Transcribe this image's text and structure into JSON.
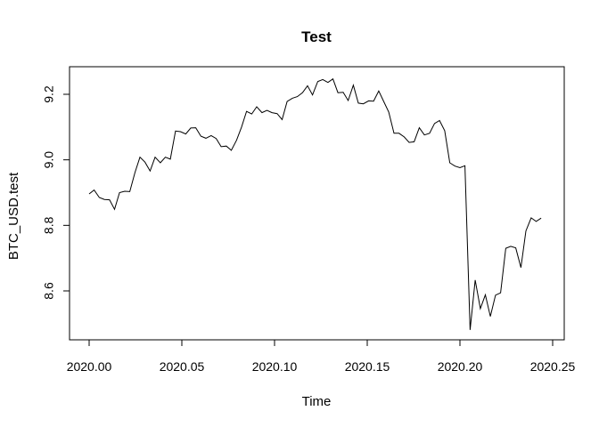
{
  "chart_data": {
    "type": "line",
    "title": "Test",
    "xlabel": "Time",
    "ylabel": "BTC_USD.test",
    "xlim": [
      2000.0,
      2020.25
    ],
    "ylim": [
      8.48,
      9.25
    ],
    "grid": false,
    "x_ticks": [
      "2020.00",
      "2020.05",
      "2020.10",
      "2020.15",
      "2020.20",
      "2020.25"
    ],
    "x_tick_values": [
      2020.0,
      2020.05,
      2020.1,
      2020.15,
      2020.2,
      2020.25
    ],
    "y_ticks": [
      "8.6",
      "8.8",
      "9.0",
      "9.2"
    ],
    "y_tick_values": [
      8.6,
      8.8,
      9.0,
      9.2
    ],
    "series": [
      {
        "x": [
          2020.0,
          2020.0027,
          2020.0055,
          2020.0082,
          2020.011,
          2020.0137,
          2020.0164,
          2020.0192,
          2020.0219,
          2020.0247,
          2020.0274,
          2020.0301,
          2020.0329,
          2020.0356,
          2020.0384,
          2020.0411,
          2020.0438,
          2020.0466,
          2020.0493,
          2020.0521,
          2020.0548,
          2020.0575,
          2020.0603,
          2020.063,
          2020.0658,
          2020.0685,
          2020.0712,
          2020.074,
          2020.0767,
          2020.0795,
          2020.0822,
          2020.0849,
          2020.0877,
          2020.0904,
          2020.0932,
          2020.0959,
          2020.0986,
          2020.1014,
          2020.1041,
          2020.1068,
          2020.1096,
          2020.1123,
          2020.1151,
          2020.1178,
          2020.1205,
          2020.1233,
          2020.126,
          2020.1288,
          2020.1315,
          2020.1342,
          2020.137,
          2020.1397,
          2020.1425,
          2020.1452,
          2020.1479,
          2020.1507,
          2020.1534,
          2020.1562,
          2020.1589,
          2020.1616,
          2020.1644,
          2020.1671,
          2020.1699,
          2020.1726,
          2020.1753,
          2020.1781,
          2020.1808,
          2020.1836,
          2020.1863,
          2020.189,
          2020.1918,
          2020.1945,
          2020.1973,
          2020.2,
          2020.2027,
          2020.2055,
          2020.2082,
          2020.211,
          2020.2137,
          2020.2164,
          2020.2192,
          2020.2219,
          2020.2247,
          2020.2274,
          2020.2301,
          2020.2329,
          2020.2356,
          2020.2384,
          2020.2411,
          2020.2438
        ],
        "y": [
          8.896,
          8.908,
          8.885,
          8.879,
          8.878,
          8.849,
          8.9,
          8.904,
          8.903,
          8.961,
          9.008,
          8.993,
          8.966,
          9.008,
          8.991,
          9.008,
          9.002,
          9.088,
          9.086,
          9.079,
          9.097,
          9.098,
          9.072,
          9.066,
          9.074,
          9.065,
          9.04,
          9.042,
          9.029,
          9.06,
          9.1,
          9.148,
          9.14,
          9.162,
          9.144,
          9.151,
          9.144,
          9.141,
          9.123,
          9.178,
          9.188,
          9.193,
          9.205,
          9.226,
          9.198,
          9.239,
          9.245,
          9.236,
          9.247,
          9.205,
          9.206,
          9.181,
          9.228,
          9.173,
          9.171,
          9.18,
          9.179,
          9.21,
          9.178,
          9.146,
          9.081,
          9.081,
          9.07,
          9.053,
          9.055,
          9.098,
          9.076,
          9.081,
          9.111,
          9.12,
          9.089,
          8.991,
          8.981,
          8.976,
          8.982,
          8.481,
          8.633,
          8.546,
          8.588,
          8.522,
          8.587,
          8.594,
          8.73,
          8.736,
          8.731,
          8.671,
          8.783,
          8.823,
          8.812,
          8.822
        ]
      }
    ]
  }
}
